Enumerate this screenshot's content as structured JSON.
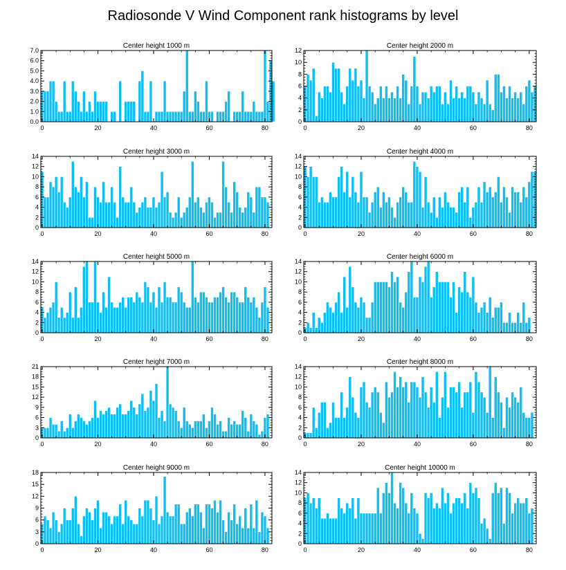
{
  "chart_data": {
    "type": "bar",
    "title": "Radiosonde V Wind Component rank histograms by level",
    "panels": [
      {
        "title": "Center height 1000 m",
        "ylim": [
          0,
          7
        ],
        "yticks": [
          0,
          1,
          2,
          3,
          4,
          5,
          6,
          7
        ],
        "ytick_labels": [
          "0.0",
          "1.0",
          "2.0",
          "3.0",
          "4.0",
          "5.0",
          "6.0",
          "7.0"
        ],
        "xticks": [
          0,
          20,
          40,
          60,
          80
        ],
        "xtick_labels": [
          "0",
          "20",
          "40",
          "60",
          "80"
        ],
        "values": [
          3,
          3,
          3,
          4,
          4,
          2,
          1,
          1,
          4,
          1,
          1,
          4,
          3,
          2,
          1,
          3,
          1,
          2,
          1,
          3,
          2,
          2,
          2,
          2,
          0,
          1,
          1,
          0,
          4,
          0,
          2,
          2,
          2,
          2,
          0,
          4,
          5,
          1,
          1,
          4,
          0,
          1,
          1,
          1,
          4,
          1,
          1,
          1,
          1,
          1,
          1,
          3,
          7,
          1,
          1,
          3,
          2,
          1,
          1,
          4,
          1,
          1,
          0,
          1,
          1,
          1,
          2,
          3,
          0,
          1,
          1,
          1,
          3,
          1,
          1,
          1,
          2,
          1,
          1,
          1,
          7,
          2,
          6,
          4
        ]
      },
      {
        "title": "Center height 2000 m",
        "ylim": [
          0,
          12
        ],
        "yticks": [
          0,
          2,
          4,
          6,
          8,
          10,
          12
        ],
        "ytick_labels": [
          "0",
          "2",
          "4",
          "6",
          "8",
          "10",
          "12"
        ],
        "xticks": [
          0,
          20,
          40,
          60,
          80
        ],
        "xtick_labels": [
          "0",
          "20",
          "40",
          "60",
          "80"
        ],
        "values": [
          6,
          8,
          7,
          9,
          1,
          5,
          4,
          6,
          6,
          5,
          10,
          9,
          9,
          5,
          3,
          6,
          9,
          7,
          9,
          6,
          7,
          4,
          12,
          6,
          5,
          3,
          4,
          6,
          4,
          6,
          4,
          5,
          4,
          6,
          4,
          8,
          7,
          3,
          6,
          11,
          6,
          3,
          5,
          5,
          4,
          6,
          5,
          6,
          6,
          3,
          5,
          3,
          7,
          4,
          6,
          4,
          5,
          4,
          6,
          6,
          5,
          3,
          5,
          4,
          3,
          7,
          3,
          2,
          8,
          8,
          5,
          6,
          4,
          6,
          4,
          5,
          4,
          5,
          3,
          6,
          7,
          5,
          6
        ]
      },
      {
        "title": "Center height 3000 m",
        "ylim": [
          0,
          14
        ],
        "yticks": [
          0,
          2,
          4,
          6,
          8,
          10,
          12,
          14
        ],
        "ytick_labels": [
          "0",
          "2",
          "4",
          "6",
          "8",
          "10",
          "12",
          "14"
        ],
        "xticks": [
          0,
          20,
          40,
          60,
          80
        ],
        "xtick_labels": [
          "0",
          "20",
          "40",
          "60",
          "80"
        ],
        "values": [
          11,
          6,
          6,
          9,
          8,
          10,
          7,
          10,
          5,
          4,
          6,
          13,
          8,
          7,
          10,
          6,
          9,
          2,
          2,
          8,
          6,
          5,
          9,
          5,
          5,
          8,
          5,
          2,
          12,
          6,
          5,
          5,
          8,
          5,
          3,
          4,
          5,
          6,
          4,
          4,
          6,
          4,
          5,
          11,
          6,
          7,
          3,
          2,
          3,
          6,
          2,
          3,
          4,
          6,
          13,
          5,
          6,
          4,
          3,
          5,
          6,
          5,
          2,
          3,
          3,
          13,
          8,
          5,
          3,
          9,
          7,
          4,
          3,
          4,
          7,
          6,
          3,
          8,
          8,
          6,
          6,
          5
        ]
      },
      {
        "title": "Center height 4000 m",
        "ylim": [
          0,
          14
        ],
        "yticks": [
          0,
          2,
          4,
          6,
          8,
          10,
          12,
          14
        ],
        "ytick_labels": [
          "0",
          "2",
          "4",
          "6",
          "8",
          "10",
          "12",
          "14"
        ],
        "xticks": [
          0,
          20,
          40,
          60,
          80
        ],
        "xtick_labels": [
          "0",
          "20",
          "40",
          "60",
          "80"
        ],
        "values": [
          12,
          10,
          12,
          10,
          10,
          5,
          6,
          5,
          5,
          7,
          6,
          6,
          10,
          12,
          7,
          11,
          6,
          10,
          7,
          5,
          11,
          6,
          6,
          3,
          5,
          7,
          8,
          4,
          7,
          5,
          6,
          4,
          2,
          5,
          6,
          8,
          7,
          5,
          5,
          13,
          12,
          11,
          4,
          10,
          5,
          3,
          6,
          2,
          6,
          4,
          7,
          5,
          4,
          4,
          3,
          7,
          8,
          5,
          8,
          2,
          4,
          5,
          8,
          5,
          9,
          7,
          8,
          6,
          7,
          10,
          5,
          8,
          6,
          3,
          8,
          7,
          7,
          5,
          8,
          6,
          9,
          11,
          11
        ]
      },
      {
        "title": "Center height 5000 m",
        "ylim": [
          0,
          14
        ],
        "yticks": [
          0,
          2,
          4,
          6,
          8,
          10,
          12,
          14
        ],
        "ytick_labels": [
          "0",
          "2",
          "4",
          "6",
          "8",
          "10",
          "12",
          "14"
        ],
        "xticks": [
          0,
          20,
          40,
          60,
          80
        ],
        "xtick_labels": [
          "0",
          "20",
          "40",
          "60",
          "80"
        ],
        "values": [
          5,
          3,
          4,
          5,
          6,
          10,
          3,
          5,
          3,
          4,
          8,
          3,
          9,
          3,
          5,
          13,
          14,
          6,
          6,
          14,
          6,
          4,
          8,
          5,
          11,
          6,
          5,
          5,
          6,
          7,
          5,
          7,
          7,
          6,
          8,
          7,
          6,
          10,
          9,
          6,
          8,
          5,
          9,
          6,
          10,
          7,
          7,
          6,
          6,
          9,
          8,
          6,
          5,
          5,
          14,
          7,
          6,
          8,
          8,
          7,
          6,
          6,
          7,
          7,
          8,
          9,
          7,
          6,
          8,
          8,
          7,
          6,
          6,
          9,
          7,
          6,
          7,
          5,
          3,
          6,
          9,
          5
        ]
      },
      {
        "title": "Center height 6000 m",
        "ylim": [
          0,
          14
        ],
        "yticks": [
          0,
          2,
          4,
          6,
          8,
          10,
          12,
          14
        ],
        "ytick_labels": [
          "0",
          "2",
          "4",
          "6",
          "8",
          "10",
          "12",
          "14"
        ],
        "xticks": [
          0,
          20,
          40,
          60,
          80
        ],
        "xtick_labels": [
          "0",
          "20",
          "40",
          "60",
          "80"
        ],
        "values": [
          1,
          2,
          1,
          4,
          1,
          3,
          2,
          4,
          6,
          5,
          4,
          6,
          8,
          4,
          11,
          5,
          13,
          9,
          6,
          5,
          7,
          6,
          3,
          3,
          6,
          10,
          10,
          10,
          10,
          10,
          9,
          12,
          10,
          11,
          6,
          5,
          8,
          12,
          14,
          7,
          7,
          11,
          10,
          13,
          14,
          7,
          9,
          12,
          10,
          10,
          10,
          10,
          7,
          10,
          4,
          9,
          8,
          12,
          8,
          7,
          11,
          6,
          4,
          5,
          6,
          4,
          7,
          3,
          5,
          5,
          6,
          2,
          2,
          4,
          2,
          2,
          4,
          2,
          6,
          2,
          3
        ]
      },
      {
        "title": "Center height 7000 m",
        "ylim": [
          0,
          21
        ],
        "yticks": [
          0,
          3,
          6,
          9,
          12,
          15,
          18,
          21
        ],
        "ytick_labels": [
          "0",
          "3",
          "6",
          "9",
          "12",
          "15",
          "18",
          "21"
        ],
        "xticks": [
          0,
          20,
          40,
          60,
          80
        ],
        "xtick_labels": [
          "0",
          "20",
          "40",
          "60",
          "80"
        ],
        "values": [
          3,
          3,
          3,
          6,
          4,
          4,
          2,
          5,
          2,
          3,
          7,
          3,
          5,
          7,
          6,
          5,
          4,
          5,
          6,
          11,
          6,
          8,
          7,
          8,
          9,
          7,
          7,
          9,
          10,
          7,
          7,
          8,
          11,
          9,
          7,
          10,
          13,
          8,
          9,
          14,
          11,
          16,
          6,
          8,
          5,
          21,
          10,
          9,
          8,
          5,
          3,
          9,
          5,
          4,
          3,
          5,
          5,
          5,
          7,
          3,
          5,
          9,
          7,
          4,
          5,
          2,
          2,
          6,
          4,
          5,
          4,
          4,
          8,
          6,
          2,
          7,
          5,
          4,
          1,
          2,
          6,
          7
        ]
      },
      {
        "title": "Center height 8000 m",
        "ylim": [
          0,
          14
        ],
        "yticks": [
          0,
          2,
          4,
          6,
          8,
          10,
          12,
          14
        ],
        "ytick_labels": [
          "0",
          "2",
          "4",
          "6",
          "8",
          "10",
          "12",
          "14"
        ],
        "xticks": [
          0,
          20,
          40,
          60,
          80
        ],
        "xtick_labels": [
          "0",
          "20",
          "40",
          "60",
          "80"
        ],
        "values": [
          1,
          1,
          1,
          6,
          2,
          5,
          7,
          7,
          2,
          3,
          7,
          4,
          4,
          9,
          4,
          6,
          12,
          8,
          5,
          4,
          10,
          11,
          7,
          6,
          9,
          10,
          9,
          5,
          3,
          11,
          8,
          9,
          13,
          10,
          12,
          10,
          11,
          7,
          11,
          11,
          10,
          8,
          12,
          9,
          6,
          10,
          7,
          13,
          4,
          8,
          13,
          6,
          10,
          10,
          9,
          11,
          6,
          9,
          9,
          11,
          5,
          13,
          11,
          9,
          8,
          5,
          14,
          4,
          12,
          9,
          7,
          2,
          8,
          6,
          9,
          8,
          7,
          10,
          5,
          4,
          4,
          5
        ]
      },
      {
        "title": "Center height 9000 m",
        "ylim": [
          0,
          18
        ],
        "yticks": [
          0,
          3,
          6,
          9,
          12,
          15,
          18
        ],
        "ytick_labels": [
          "0",
          "3",
          "6",
          "9",
          "12",
          "15",
          "18"
        ],
        "xticks": [
          0,
          20,
          40,
          60,
          80
        ],
        "xtick_labels": [
          "0",
          "20",
          "40",
          "60",
          "80"
        ],
        "values": [
          5,
          7,
          6,
          4,
          8,
          6,
          3,
          5,
          9,
          6,
          6,
          9,
          12,
          5,
          2,
          7,
          9,
          8,
          6,
          9,
          11,
          4,
          8,
          8,
          7,
          5,
          7,
          7,
          10,
          5,
          11,
          7,
          6,
          5,
          5,
          9,
          7,
          11,
          11,
          9,
          6,
          12,
          5,
          7,
          17,
          8,
          7,
          7,
          10,
          10,
          5,
          5,
          8,
          9,
          7,
          10,
          10,
          8,
          4,
          10,
          10,
          9,
          11,
          8,
          11,
          6,
          3,
          8,
          6,
          10,
          5,
          7,
          4,
          9,
          4,
          10,
          4,
          11,
          3,
          8,
          7,
          4
        ]
      },
      {
        "title": "Center height 10000 m",
        "ylim": [
          0,
          14
        ],
        "yticks": [
          0,
          2,
          4,
          6,
          8,
          10,
          12,
          14
        ],
        "ytick_labels": [
          "0",
          "2",
          "4",
          "6",
          "8",
          "10",
          "12",
          "14"
        ],
        "xticks": [
          0,
          20,
          40,
          60,
          80
        ],
        "xtick_labels": [
          "0",
          "20",
          "40",
          "60",
          "80"
        ],
        "values": [
          9,
          10,
          8,
          9,
          7,
          9,
          5,
          5,
          6,
          5,
          5,
          5,
          9,
          7,
          6,
          8,
          7,
          9,
          5,
          9,
          6,
          6,
          6,
          6,
          6,
          6,
          11,
          6,
          10,
          12,
          10,
          14,
          8,
          7,
          12,
          11,
          8,
          6,
          10,
          7,
          6,
          2,
          1,
          10,
          9,
          10,
          7,
          8,
          7,
          11,
          8,
          10,
          6,
          8,
          9,
          9,
          8,
          10,
          7,
          12,
          10,
          11,
          9,
          4,
          5,
          3,
          1,
          10,
          12,
          10,
          11,
          4,
          11,
          10,
          6,
          8,
          9,
          8,
          8,
          9,
          6,
          7
        ]
      }
    ]
  },
  "style": {
    "bar_color": "#10bff0",
    "bar_edge": "#ffffff",
    "axis_color": "#000000"
  }
}
